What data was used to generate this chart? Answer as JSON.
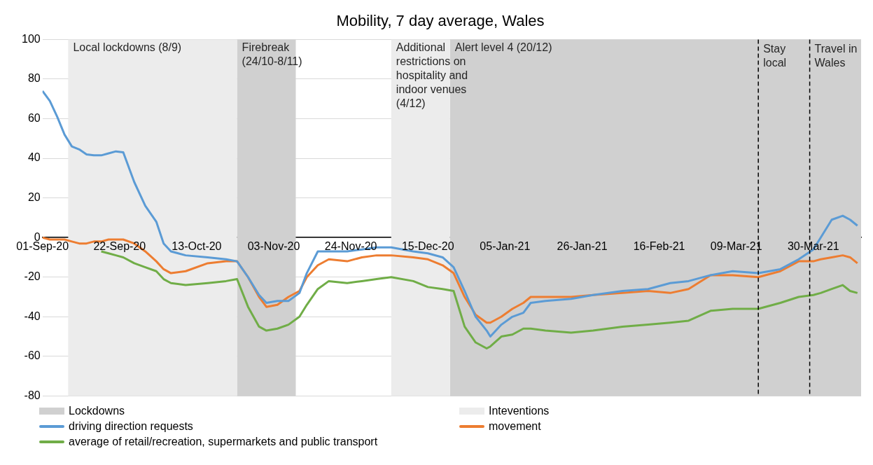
{
  "chart_data": {
    "type": "line",
    "title": "Mobility, 7 day average, Wales",
    "x": [
      "2020-09-01",
      "2020-09-03",
      "2020-09-05",
      "2020-09-07",
      "2020-09-09",
      "2020-09-11",
      "2020-09-13",
      "2020-09-15",
      "2020-09-17",
      "2020-09-19",
      "2020-09-21",
      "2020-09-23",
      "2020-09-26",
      "2020-09-29",
      "2020-10-02",
      "2020-10-04",
      "2020-10-06",
      "2020-10-10",
      "2020-10-16",
      "2020-10-21",
      "2020-10-24",
      "2020-10-27",
      "2020-10-30",
      "2020-11-01",
      "2020-11-04",
      "2020-11-07",
      "2020-11-10",
      "2020-11-12",
      "2020-11-15",
      "2020-11-18",
      "2020-11-23",
      "2020-11-27",
      "2020-12-01",
      "2020-12-05",
      "2020-12-11",
      "2020-12-15",
      "2020-12-19",
      "2020-12-22",
      "2020-12-25",
      "2020-12-28",
      "2020-12-31",
      "2021-01-01",
      "2021-01-04",
      "2021-01-07",
      "2021-01-10",
      "2021-01-12",
      "2021-01-16",
      "2021-01-23",
      "2021-01-29",
      "2021-02-06",
      "2021-02-13",
      "2021-02-19",
      "2021-02-24",
      "2021-03-02",
      "2021-03-08",
      "2021-03-15",
      "2021-03-21",
      "2021-03-26",
      "2021-03-30",
      "2021-04-01",
      "2021-04-04",
      "2021-04-07",
      "2021-04-09",
      "2021-04-11"
    ],
    "series": [
      {
        "name": "driving direction requests",
        "color": "#5b9bd5",
        "values": [
          74,
          69,
          61,
          52,
          46,
          44.5,
          42,
          41.5,
          41.5,
          42.5,
          43.5,
          43,
          28,
          16,
          8,
          -3,
          -7,
          -9,
          -10,
          -11,
          -12,
          -20,
          -29,
          -33,
          -32,
          -32,
          -28,
          -18,
          -7,
          -7,
          -7,
          -6,
          -5,
          -5,
          -7,
          -8,
          -10,
          -15,
          -27,
          -40,
          -47,
          -50,
          -44,
          -40,
          -38,
          -33,
          -32,
          -31,
          -29,
          -27,
          -26,
          -23,
          -22,
          -19,
          -17,
          -18,
          -16,
          -11,
          -6,
          0,
          9,
          11,
          9,
          6
        ]
      },
      {
        "name": "movement",
        "color": "#ed7d31",
        "values": [
          0,
          -1,
          -1,
          -1,
          -2,
          -3,
          -3,
          -2,
          -2,
          -1,
          -1,
          -1,
          -3,
          -7,
          -12,
          -16,
          -18,
          -17,
          -13,
          -12,
          -12,
          -20,
          -30,
          -35,
          -34,
          -30,
          -27,
          -20,
          -14,
          -11,
          -12,
          -10,
          -9,
          -9,
          -10,
          -11,
          -14,
          -18,
          -30,
          -39,
          -43,
          -43,
          -40,
          -36,
          -33,
          -30,
          -30,
          -30,
          -29,
          -28,
          -27,
          -28,
          -26,
          -19,
          -19,
          -20,
          -17,
          -12,
          -12,
          -11,
          -10,
          -9,
          -10,
          -13
        ]
      },
      {
        "name": "average of retail/recreation, supermarkets and public transport",
        "color": "#70ad47",
        "values": [
          null,
          null,
          null,
          null,
          null,
          null,
          null,
          null,
          -7,
          -8,
          -9,
          -10,
          -13,
          -15,
          -17,
          -21,
          -23,
          -24,
          -23,
          -22,
          -21,
          -35,
          -45,
          -47,
          -46,
          -44,
          -40,
          -34,
          -26,
          -22,
          -23,
          -22,
          -21,
          -20,
          -22,
          -25,
          -26,
          -27,
          -45,
          -53,
          -56,
          -55,
          -50,
          -49,
          -46,
          -46,
          -47,
          -48,
          -47,
          -45,
          -44,
          -43,
          -42,
          -37,
          -36,
          -36,
          -33,
          -30,
          -29,
          -28,
          -26,
          -24,
          -27,
          -28
        ]
      }
    ],
    "xlim": [
      "2020-09-01",
      "2021-04-12"
    ],
    "xticks": [
      {
        "value": "2020-09-01",
        "label": "01-Sep-20"
      },
      {
        "value": "2020-09-22",
        "label": "22-Sep-20"
      },
      {
        "value": "2020-10-13",
        "label": "13-Oct-20"
      },
      {
        "value": "2020-11-03",
        "label": "03-Nov-20"
      },
      {
        "value": "2020-11-24",
        "label": "24-Nov-20"
      },
      {
        "value": "2020-12-15",
        "label": "15-Dec-20"
      },
      {
        "value": "2021-01-05",
        "label": "05-Jan-21"
      },
      {
        "value": "2021-01-26",
        "label": "26-Jan-21"
      },
      {
        "value": "2021-02-16",
        "label": "16-Feb-21"
      },
      {
        "value": "2021-03-09",
        "label": "09-Mar-21"
      },
      {
        "value": "2021-03-30",
        "label": "30-Mar-21"
      }
    ],
    "ylim": [
      -80,
      100
    ],
    "yticks": [
      -80,
      -60,
      -40,
      -20,
      0,
      20,
      40,
      60,
      80,
      100
    ],
    "bands": [
      {
        "axis": "x",
        "from": "2020-10-24",
        "to": "2020-11-09",
        "label": "Firebreak (24/10-8/11)",
        "color": "#d0d0d0"
      },
      {
        "axis": "x",
        "from": "2020-12-21",
        "to": "2021-04-12",
        "label": "Alert level 4 (20/12)",
        "color": "#d0d0d0"
      },
      {
        "axis": "x",
        "from": "2020-09-08",
        "to": "2020-10-24",
        "label": "Local lockdowns (8/9)",
        "color": "#ececec"
      },
      {
        "axis": "x",
        "from": "2020-12-05",
        "to": "2020-12-21",
        "label": "Additional restrictions on hospitality and indoor venues (4/12)",
        "color": "#ececec"
      }
    ],
    "ref_lines": [
      {
        "axis": "x",
        "value": "2021-03-15",
        "label": "Stay local",
        "color": "#000000",
        "line_style": "dashed"
      },
      {
        "axis": "x",
        "value": "2021-03-29",
        "label": "Travel in Wales",
        "color": "#000000",
        "line_style": "dashed"
      }
    ],
    "annotations": [
      "Lockdowns",
      "Inteventions"
    ],
    "grid": "y",
    "legend": "bottom",
    "marker": "none",
    "line_style": "solid"
  }
}
